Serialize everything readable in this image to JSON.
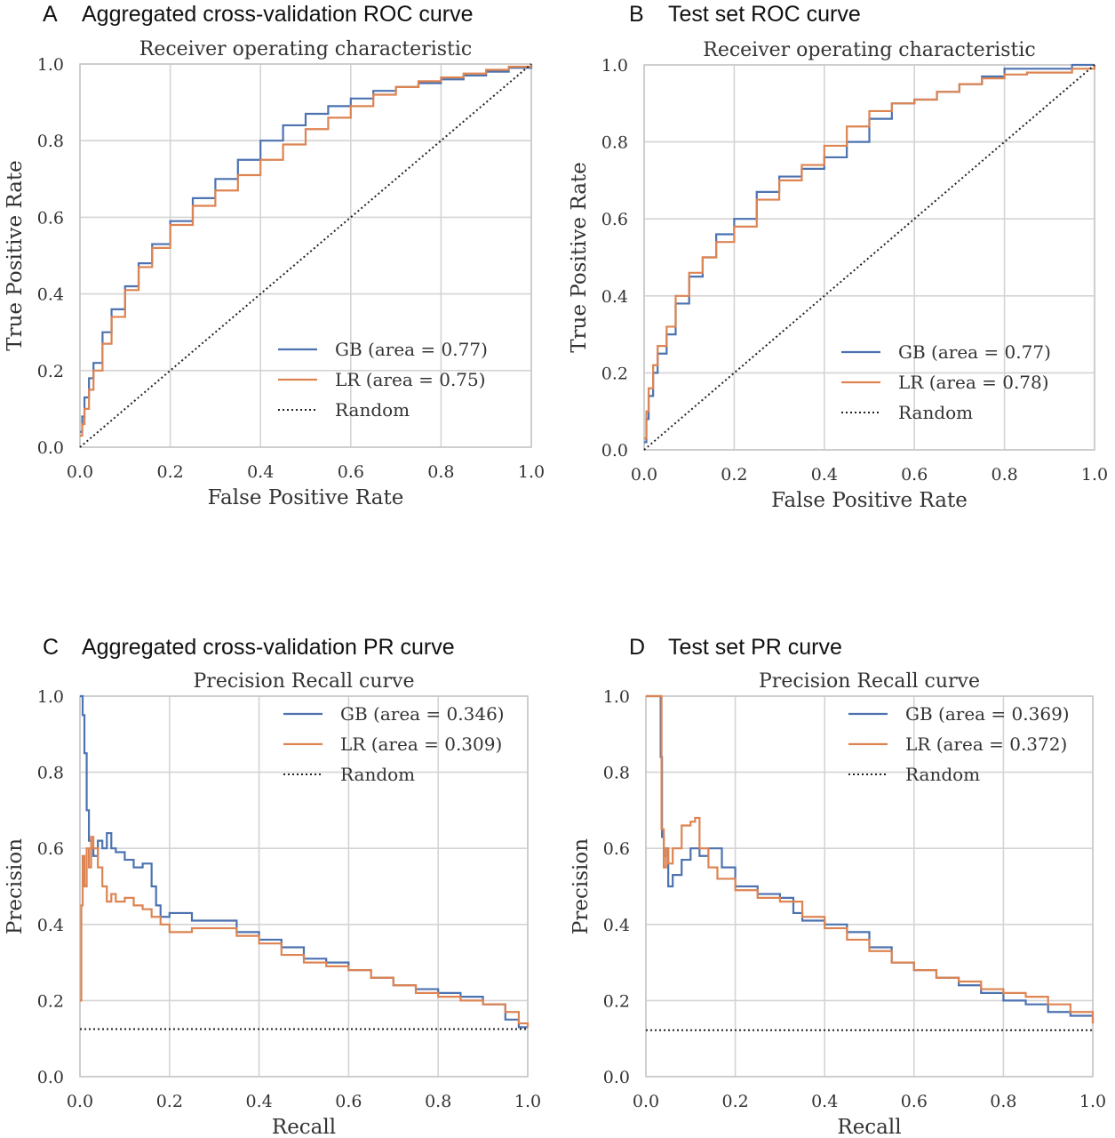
{
  "colors": {
    "gb": "#4c72b0",
    "lr": "#dd8452",
    "random": "#222222"
  },
  "chart_data": [
    {
      "type": "line",
      "panel_label": "A",
      "panel_title": "Aggregated cross-validation ROC curve",
      "title": "Receiver operating characteristic",
      "xlabel": "False Positive Rate",
      "ylabel": "True Positive Rate",
      "xlim": [
        0,
        1
      ],
      "ylim": [
        0,
        1
      ],
      "xticks": [
        0,
        0.2,
        0.4,
        0.6,
        0.8,
        1
      ],
      "yticks": [
        0,
        0.2,
        0.4,
        0.6,
        0.8,
        1
      ],
      "tick_labels_x": [
        "0.0",
        "0.2",
        "0.4",
        "0.6",
        "0.8",
        "1.0"
      ],
      "tick_labels_y": [
        "0.0",
        "0.2",
        "0.4",
        "0.6",
        "0.8",
        "1.0"
      ],
      "grid": true,
      "legend_position": "lower-right",
      "series": [
        {
          "name": "GB (area = 0.77)",
          "key": "gb",
          "x": [
            0,
            0.005,
            0.01,
            0.02,
            0.03,
            0.05,
            0.07,
            0.1,
            0.13,
            0.16,
            0.2,
            0.25,
            0.3,
            0.35,
            0.4,
            0.45,
            0.5,
            0.55,
            0.6,
            0.65,
            0.7,
            0.75,
            0.8,
            0.85,
            0.9,
            0.95,
            1
          ],
          "y": [
            0.04,
            0.08,
            0.13,
            0.18,
            0.22,
            0.3,
            0.36,
            0.42,
            0.48,
            0.53,
            0.59,
            0.65,
            0.7,
            0.75,
            0.8,
            0.84,
            0.87,
            0.89,
            0.91,
            0.93,
            0.94,
            0.95,
            0.96,
            0.97,
            0.98,
            0.99,
            1
          ]
        },
        {
          "name": "LR (area = 0.75)",
          "key": "lr",
          "x": [
            0,
            0.005,
            0.01,
            0.02,
            0.03,
            0.05,
            0.07,
            0.1,
            0.13,
            0.16,
            0.2,
            0.25,
            0.3,
            0.35,
            0.4,
            0.45,
            0.5,
            0.55,
            0.6,
            0.65,
            0.7,
            0.75,
            0.8,
            0.85,
            0.9,
            0.95,
            1
          ],
          "y": [
            0.03,
            0.06,
            0.1,
            0.15,
            0.2,
            0.27,
            0.34,
            0.41,
            0.47,
            0.52,
            0.58,
            0.63,
            0.67,
            0.71,
            0.75,
            0.79,
            0.83,
            0.86,
            0.89,
            0.92,
            0.94,
            0.955,
            0.965,
            0.975,
            0.985,
            0.993,
            1
          ]
        },
        {
          "name": "Random",
          "key": "random",
          "dash": true,
          "x": [
            0,
            1
          ],
          "y": [
            0,
            1
          ]
        }
      ]
    },
    {
      "type": "line",
      "panel_label": "B",
      "panel_title": "Test set ROC curve",
      "title": "Receiver operating characteristic",
      "xlabel": "False Positive Rate",
      "ylabel": "True Positive Rate",
      "xlim": [
        0,
        1
      ],
      "ylim": [
        0,
        1
      ],
      "xticks": [
        0,
        0.2,
        0.4,
        0.6,
        0.8,
        1
      ],
      "yticks": [
        0,
        0.2,
        0.4,
        0.6,
        0.8,
        1
      ],
      "tick_labels_x": [
        "0.0",
        "0.2",
        "0.4",
        "0.6",
        "0.8",
        "1.0"
      ],
      "tick_labels_y": [
        "0.0",
        "0.2",
        "0.4",
        "0.6",
        "0.8",
        "1.0"
      ],
      "grid": true,
      "legend_position": "lower-right",
      "series": [
        {
          "name": "GB (area = 0.77)",
          "key": "gb",
          "x": [
            0,
            0.005,
            0.01,
            0.02,
            0.03,
            0.05,
            0.07,
            0.1,
            0.13,
            0.16,
            0.2,
            0.25,
            0.3,
            0.35,
            0.4,
            0.45,
            0.5,
            0.55,
            0.6,
            0.65,
            0.7,
            0.75,
            0.8,
            0.85,
            0.9,
            0.95,
            1
          ],
          "y": [
            0.02,
            0.08,
            0.14,
            0.2,
            0.25,
            0.3,
            0.38,
            0.45,
            0.5,
            0.56,
            0.6,
            0.67,
            0.71,
            0.73,
            0.76,
            0.8,
            0.86,
            0.9,
            0.91,
            0.93,
            0.95,
            0.97,
            0.99,
            0.99,
            0.99,
            1,
            1
          ]
        },
        {
          "name": "LR (area = 0.78)",
          "key": "lr",
          "x": [
            0,
            0.005,
            0.01,
            0.02,
            0.03,
            0.05,
            0.07,
            0.1,
            0.13,
            0.16,
            0.2,
            0.25,
            0.3,
            0.35,
            0.4,
            0.45,
            0.5,
            0.55,
            0.6,
            0.65,
            0.7,
            0.75,
            0.8,
            0.85,
            0.9,
            0.95,
            1
          ],
          "y": [
            0.03,
            0.1,
            0.16,
            0.22,
            0.27,
            0.32,
            0.4,
            0.46,
            0.5,
            0.54,
            0.58,
            0.65,
            0.7,
            0.74,
            0.79,
            0.84,
            0.88,
            0.9,
            0.91,
            0.93,
            0.95,
            0.965,
            0.975,
            0.98,
            0.98,
            0.99,
            1
          ]
        },
        {
          "name": "Random",
          "key": "random",
          "dash": true,
          "x": [
            0,
            1
          ],
          "y": [
            0,
            1
          ]
        }
      ]
    },
    {
      "type": "line",
      "panel_label": "C",
      "panel_title": "Aggregated cross-validation PR curve",
      "title": "Precision Recall curve",
      "xlabel": "Recall",
      "ylabel": "Precision",
      "xlim": [
        0,
        1
      ],
      "ylim": [
        0,
        1
      ],
      "xticks": [
        0,
        0.2,
        0.4,
        0.6,
        0.8,
        1
      ],
      "yticks": [
        0,
        0.2,
        0.4,
        0.6,
        0.8,
        1
      ],
      "tick_labels_x": [
        "0.0",
        "0.2",
        "0.4",
        "0.6",
        "0.8",
        "1.0"
      ],
      "tick_labels_y": [
        "0.0",
        "0.2",
        "0.4",
        "0.6",
        "0.8",
        "1.0"
      ],
      "grid": true,
      "legend_position": "top-right",
      "series": [
        {
          "name": "GB (area = 0.346)",
          "key": "gb",
          "x": [
            0,
            0.003,
            0.006,
            0.01,
            0.015,
            0.02,
            0.025,
            0.03,
            0.04,
            0.05,
            0.06,
            0.07,
            0.08,
            0.1,
            0.12,
            0.14,
            0.16,
            0.17,
            0.18,
            0.2,
            0.25,
            0.3,
            0.35,
            0.4,
            0.45,
            0.5,
            0.55,
            0.6,
            0.65,
            0.7,
            0.75,
            0.8,
            0.85,
            0.9,
            0.95,
            0.98,
            1
          ],
          "y": [
            1,
            1,
            0.95,
            0.85,
            0.7,
            0.62,
            0.6,
            0.58,
            0.62,
            0.6,
            0.64,
            0.6,
            0.59,
            0.57,
            0.55,
            0.56,
            0.5,
            0.45,
            0.42,
            0.43,
            0.41,
            0.41,
            0.38,
            0.36,
            0.34,
            0.31,
            0.3,
            0.28,
            0.26,
            0.24,
            0.23,
            0.22,
            0.21,
            0.19,
            0.15,
            0.13,
            0.13
          ]
        },
        {
          "name": "LR (area = 0.309)",
          "key": "lr",
          "x": [
            0,
            0.003,
            0.006,
            0.01,
            0.015,
            0.02,
            0.025,
            0.03,
            0.04,
            0.05,
            0.06,
            0.07,
            0.08,
            0.1,
            0.12,
            0.14,
            0.16,
            0.18,
            0.2,
            0.25,
            0.3,
            0.35,
            0.4,
            0.45,
            0.5,
            0.55,
            0.6,
            0.65,
            0.7,
            0.75,
            0.8,
            0.85,
            0.9,
            0.95,
            0.98,
            1
          ],
          "y": [
            0.2,
            0.45,
            0.58,
            0.5,
            0.6,
            0.55,
            0.63,
            0.6,
            0.55,
            0.5,
            0.46,
            0.48,
            0.46,
            0.47,
            0.45,
            0.44,
            0.42,
            0.4,
            0.38,
            0.39,
            0.39,
            0.37,
            0.35,
            0.32,
            0.3,
            0.29,
            0.28,
            0.26,
            0.24,
            0.22,
            0.21,
            0.2,
            0.19,
            0.17,
            0.14,
            0.13
          ]
        },
        {
          "name": "Random",
          "key": "random",
          "dash": true,
          "x": [
            0,
            1
          ],
          "y": [
            0.125,
            0.125
          ]
        }
      ]
    },
    {
      "type": "line",
      "panel_label": "D",
      "panel_title": "Test set PR curve",
      "title": "Precision Recall curve",
      "xlabel": "Recall",
      "ylabel": "Precision",
      "xlim": [
        0,
        1
      ],
      "ylim": [
        0,
        1
      ],
      "xticks": [
        0,
        0.2,
        0.4,
        0.6,
        0.8,
        1
      ],
      "yticks": [
        0,
        0.2,
        0.4,
        0.6,
        0.8,
        1
      ],
      "tick_labels_x": [
        "0.0",
        "0.2",
        "0.4",
        "0.6",
        "0.8",
        "1.0"
      ],
      "tick_labels_y": [
        "0.0",
        "0.2",
        "0.4",
        "0.6",
        "0.8",
        "1.0"
      ],
      "grid": true,
      "legend_position": "top-right",
      "series": [
        {
          "name": "GB (area = 0.369)",
          "key": "gb",
          "x": [
            0,
            0.02,
            0.03,
            0.033,
            0.036,
            0.04,
            0.045,
            0.05,
            0.06,
            0.08,
            0.1,
            0.12,
            0.14,
            0.16,
            0.17,
            0.2,
            0.25,
            0.3,
            0.33,
            0.35,
            0.4,
            0.45,
            0.5,
            0.55,
            0.6,
            0.65,
            0.7,
            0.75,
            0.8,
            0.85,
            0.9,
            0.95,
            1
          ],
          "y": [
            1,
            1,
            1,
            0.84,
            0.63,
            0.58,
            0.6,
            0.5,
            0.53,
            0.57,
            0.6,
            0.58,
            0.6,
            0.6,
            0.55,
            0.5,
            0.48,
            0.47,
            0.43,
            0.41,
            0.4,
            0.38,
            0.34,
            0.3,
            0.28,
            0.26,
            0.24,
            0.22,
            0.2,
            0.19,
            0.17,
            0.16,
            0.14
          ]
        },
        {
          "name": "LR (area = 0.372)",
          "key": "lr",
          "x": [
            0,
            0.02,
            0.03,
            0.035,
            0.04,
            0.045,
            0.05,
            0.06,
            0.08,
            0.1,
            0.11,
            0.12,
            0.14,
            0.16,
            0.2,
            0.25,
            0.3,
            0.35,
            0.4,
            0.45,
            0.5,
            0.55,
            0.6,
            0.65,
            0.7,
            0.75,
            0.8,
            0.85,
            0.9,
            0.95,
            1
          ],
          "y": [
            1,
            1,
            1,
            0.65,
            0.55,
            0.6,
            0.56,
            0.6,
            0.66,
            0.67,
            0.68,
            0.6,
            0.55,
            0.52,
            0.49,
            0.47,
            0.46,
            0.42,
            0.39,
            0.36,
            0.33,
            0.3,
            0.28,
            0.26,
            0.25,
            0.23,
            0.22,
            0.21,
            0.19,
            0.17,
            0.14
          ]
        },
        {
          "name": "Random",
          "key": "random",
          "dash": true,
          "x": [
            0,
            1
          ],
          "y": [
            0.122,
            0.122
          ]
        }
      ]
    }
  ]
}
